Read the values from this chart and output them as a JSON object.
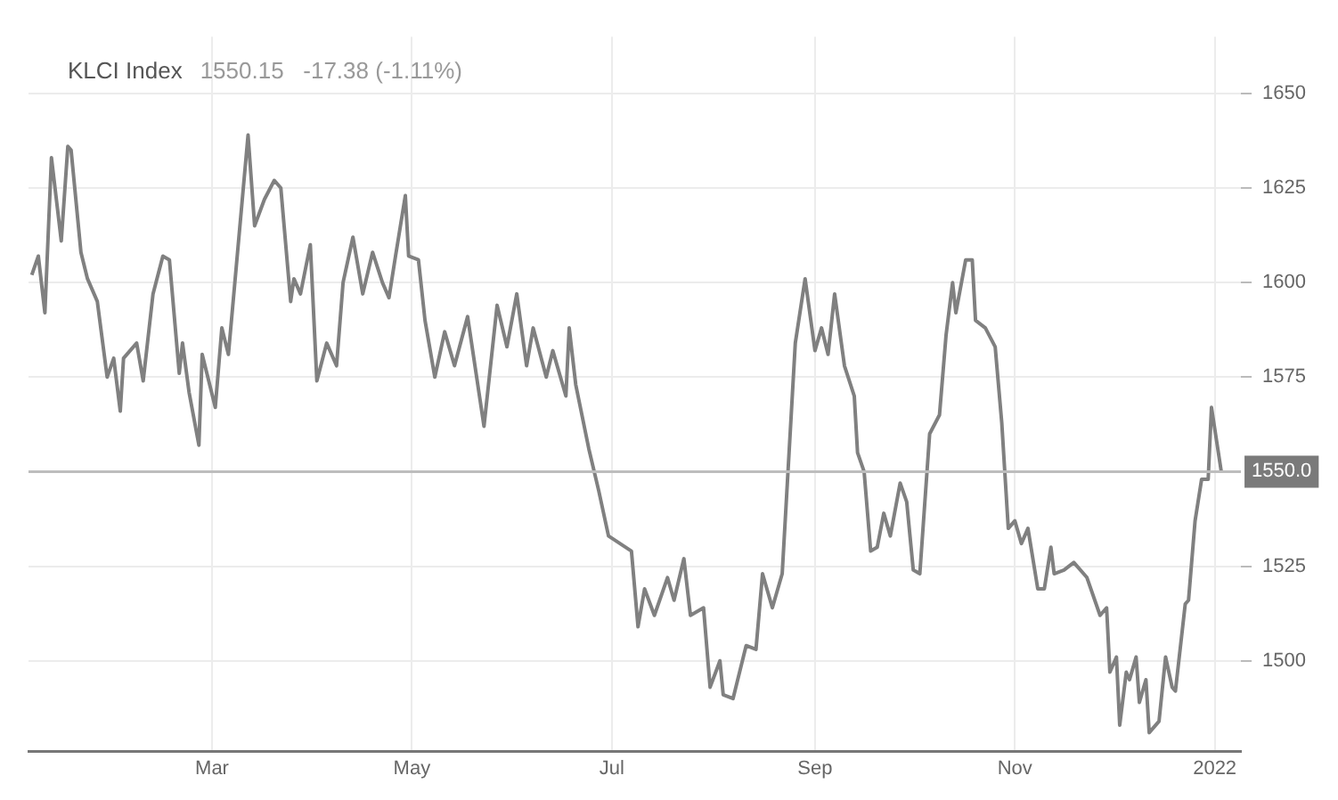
{
  "chart_data": {
    "type": "line",
    "title": "KLCI Index",
    "subtitle": "1550.15   -17.38 (-1.11%)",
    "x": [
      "2021-01-05",
      "2021-01-07",
      "2021-01-09",
      "2021-01-11",
      "2021-01-14",
      "2021-01-16",
      "2021-01-17",
      "2021-01-20",
      "2021-01-22",
      "2021-01-25",
      "2021-01-28",
      "2021-01-30",
      "2021-02-01",
      "2021-02-02",
      "2021-02-06",
      "2021-02-08",
      "2021-02-11",
      "2021-02-14",
      "2021-02-16",
      "2021-02-19",
      "2021-02-20",
      "2021-02-22",
      "2021-02-25",
      "2021-02-26",
      "2021-03-02",
      "2021-03-04",
      "2021-03-06",
      "2021-03-12",
      "2021-03-14",
      "2021-03-17",
      "2021-03-20",
      "2021-03-22",
      "2021-03-25",
      "2021-03-26",
      "2021-03-28",
      "2021-03-31",
      "2021-04-02",
      "2021-04-05",
      "2021-04-08",
      "2021-04-10",
      "2021-04-13",
      "2021-04-16",
      "2021-04-19",
      "2021-04-22",
      "2021-04-24",
      "2021-04-26",
      "2021-04-29",
      "2021-04-30",
      "2021-05-03",
      "2021-05-05",
      "2021-05-08",
      "2021-05-11",
      "2021-05-14",
      "2021-05-18",
      "2021-05-23",
      "2021-05-27",
      "2021-05-30",
      "2021-06-02",
      "2021-06-05",
      "2021-06-07",
      "2021-06-11",
      "2021-06-13",
      "2021-06-17",
      "2021-06-18",
      "2021-06-20",
      "2021-06-24",
      "2021-06-27",
      "2021-06-30",
      "2021-07-07",
      "2021-07-09",
      "2021-07-11",
      "2021-07-14",
      "2021-07-18",
      "2021-07-20",
      "2021-07-23",
      "2021-07-25",
      "2021-07-29",
      "2021-07-31",
      "2021-08-03",
      "2021-08-04",
      "2021-08-07",
      "2021-08-11",
      "2021-08-14",
      "2021-08-16",
      "2021-08-19",
      "2021-08-22",
      "2021-08-26",
      "2021-08-29",
      "2021-09-01",
      "2021-09-03",
      "2021-09-05",
      "2021-09-07",
      "2021-09-10",
      "2021-09-13",
      "2021-09-14",
      "2021-09-16",
      "2021-09-18",
      "2021-09-20",
      "2021-09-22",
      "2021-09-24",
      "2021-09-27",
      "2021-09-29",
      "2021-10-01",
      "2021-10-03",
      "2021-10-06",
      "2021-10-09",
      "2021-10-11",
      "2021-10-13",
      "2021-10-14",
      "2021-10-17",
      "2021-10-19",
      "2021-10-20",
      "2021-10-23",
      "2021-10-26",
      "2021-10-28",
      "2021-10-30",
      "2021-11-01",
      "2021-11-03",
      "2021-11-05",
      "2021-11-08",
      "2021-11-10",
      "2021-11-12",
      "2021-11-13",
      "2021-11-16",
      "2021-11-19",
      "2021-11-23",
      "2021-11-27",
      "2021-11-29",
      "2021-11-30",
      "2021-12-02",
      "2021-12-03",
      "2021-12-05",
      "2021-12-06",
      "2021-12-08",
      "2021-12-09",
      "2021-12-11",
      "2021-12-12",
      "2021-12-15",
      "2021-12-17",
      "2021-12-19",
      "2021-12-20",
      "2021-12-23",
      "2021-12-24",
      "2021-12-26",
      "2021-12-28",
      "2021-12-30",
      "2021-12-31",
      "2022-01-03"
    ],
    "series": [
      {
        "color": "#808080",
        "values": [
          1602,
          1607,
          1592,
          1633,
          1611,
          1636,
          1635,
          1608,
          1601,
          1595,
          1575,
          1580,
          1566,
          1580,
          1584,
          1574,
          1597,
          1607,
          1606,
          1576,
          1584,
          1571,
          1557,
          1581,
          1567,
          1588,
          1581,
          1639,
          1615,
          1622,
          1627,
          1625,
          1595,
          1601,
          1597,
          1610,
          1574,
          1584,
          1578,
          1600,
          1612,
          1597,
          1608,
          1600,
          1596,
          1607,
          1623,
          1607,
          1606,
          1590,
          1575,
          1587,
          1578,
          1591,
          1562,
          1594,
          1583,
          1597,
          1578,
          1588,
          1575,
          1582,
          1570,
          1588,
          1573,
          1556,
          1545,
          1533,
          1529,
          1509,
          1519,
          1512,
          1522,
          1516,
          1527,
          1512,
          1514,
          1493,
          1500,
          1491,
          1490,
          1504,
          1503,
          1523,
          1514,
          1523,
          1584,
          1601,
          1582,
          1588,
          1581,
          1597,
          1578,
          1570,
          1555,
          1550,
          1529,
          1530,
          1539,
          1533,
          1547,
          1542,
          1524,
          1523,
          1560,
          1565,
          1586,
          1600,
          1592,
          1606,
          1606,
          1590,
          1588,
          1583,
          1563,
          1535,
          1537,
          1531,
          1535,
          1519,
          1519,
          1530,
          1523,
          1524,
          1526,
          1522,
          1512,
          1514,
          1497,
          1501,
          1483,
          1497,
          1495,
          1501,
          1489,
          1495,
          1481,
          1484,
          1501,
          1493,
          1492,
          1515,
          1516,
          1537,
          1548,
          1548,
          1567,
          1550
        ]
      }
    ],
    "xlim": [
      "2021-01-04",
      "2022-01-09"
    ],
    "xticks": [
      {
        "value": "2021-03-01",
        "label": "Mar"
      },
      {
        "value": "2021-05-01",
        "label": "May"
      },
      {
        "value": "2021-07-01",
        "label": "Jul"
      },
      {
        "value": "2021-09-01",
        "label": "Sep"
      },
      {
        "value": "2021-11-01",
        "label": "Nov"
      },
      {
        "value": "2022-01-01",
        "label": "2022"
      }
    ],
    "ylim": [
      1476,
      1665
    ],
    "yticks": [
      1500,
      1525,
      1575,
      1600,
      1625,
      1650
    ],
    "ref_lines": [
      {
        "axis": "y",
        "value": 1550,
        "label": "1550.0",
        "color": "#bdbdbd"
      }
    ],
    "grid": true,
    "legend": false,
    "marker": "none",
    "line_style": "solid"
  }
}
